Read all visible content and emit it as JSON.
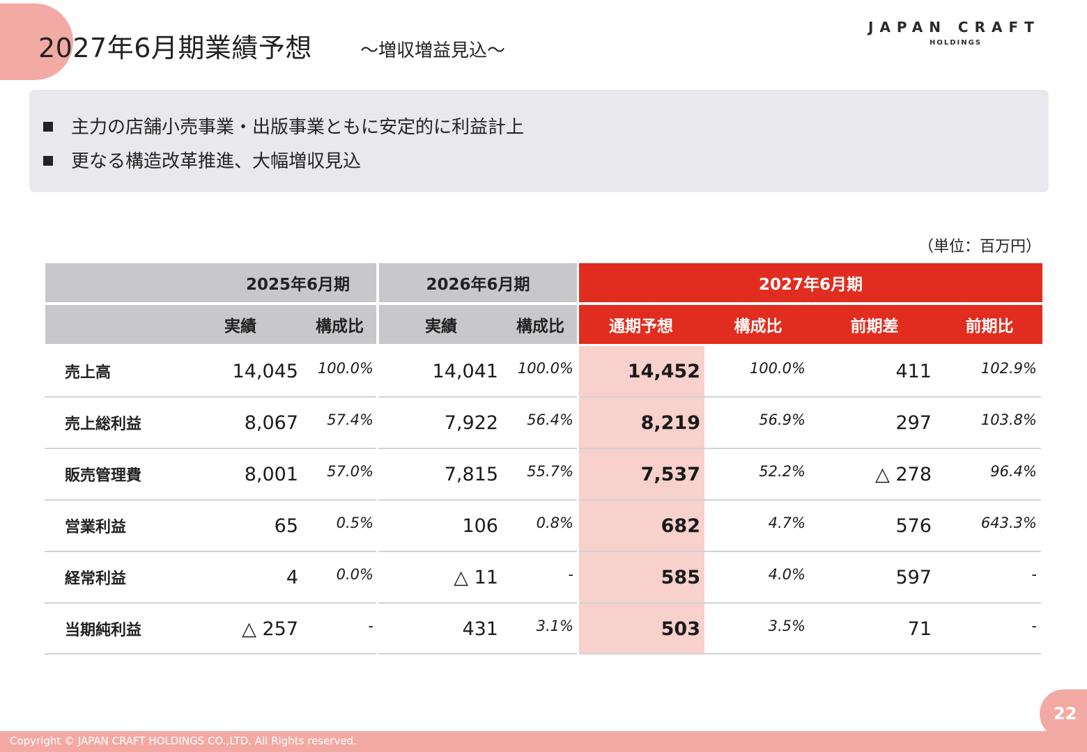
{
  "header": {
    "title": "2027年6月期業績予想",
    "subtitle": "～増収増益見込～",
    "logo_main": "JAPAN CRAFT",
    "logo_sub": "HOLDINGS"
  },
  "summary": {
    "bullets": [
      "主力の店舗小売事業・出版事業ともに安定的に利益計上",
      "更なる構造改革推進、大幅増収見込"
    ]
  },
  "table": {
    "unit": "（単位：百万円）",
    "periods": [
      "2025年6月期",
      "2026年6月期",
      "2027年6月期"
    ],
    "subheaders": [
      "実績",
      "構成比",
      "実績",
      "構成比",
      "通期予想",
      "構成比",
      "前期差",
      "前期比"
    ],
    "rows": [
      {
        "label": "売上高",
        "fy25": "14,045",
        "fy25_pct": "100.0%",
        "fy26": "14,041",
        "fy26_pct": "100.0%",
        "fc": "14,452",
        "fc_pct": "100.0%",
        "diff": "411",
        "ratio": "102.9%"
      },
      {
        "label": "売上総利益",
        "fy25": "8,067",
        "fy25_pct": "57.4%",
        "fy26": "7,922",
        "fy26_pct": "56.4%",
        "fc": "8,219",
        "fc_pct": "56.9%",
        "diff": "297",
        "ratio": "103.8%"
      },
      {
        "label": "販売管理費",
        "fy25": "8,001",
        "fy25_pct": "57.0%",
        "fy26": "7,815",
        "fy26_pct": "55.7%",
        "fc": "7,537",
        "fc_pct": "52.2%",
        "diff": "△ 278",
        "ratio": "96.4%"
      },
      {
        "label": "営業利益",
        "fy25": "65",
        "fy25_pct": "0.5%",
        "fy26": "106",
        "fy26_pct": "0.8%",
        "fc": "682",
        "fc_pct": "4.7%",
        "diff": "576",
        "ratio": "643.3%"
      },
      {
        "label": "経常利益",
        "fy25": "4",
        "fy25_pct": "0.0%",
        "fy26": "△ 11",
        "fy26_pct": "-",
        "fc": "585",
        "fc_pct": "4.0%",
        "diff": "597",
        "ratio": "-"
      },
      {
        "label": "当期純利益",
        "fy25": "△ 257",
        "fy25_pct": "-",
        "fy26": "431",
        "fy26_pct": "3.1%",
        "fc": "503",
        "fc_pct": "3.5%",
        "diff": "71",
        "ratio": "-"
      }
    ]
  },
  "page_number": "22",
  "footer": {
    "copyright": "Copyright © JAPAN CRAFT HOLDINGS CO.,LTD. All Rights reserved."
  },
  "colors": {
    "accent_red": "#e12d1f",
    "accent_pink": "#f3aaa4",
    "forecast_bg": "#f8d0cc",
    "header_gray": "#c8c8cb",
    "summary_bg": "#e9e8ec"
  }
}
